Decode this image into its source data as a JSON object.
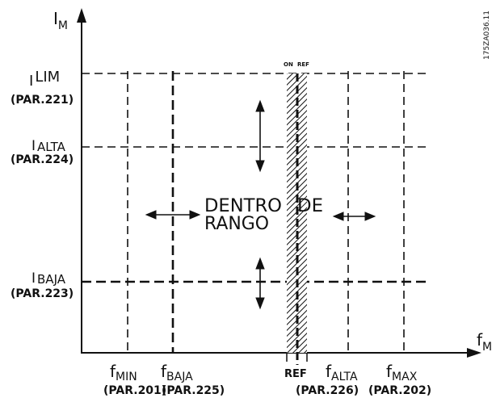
{
  "axes": {
    "y_label_main": "I",
    "y_label_sub": "M",
    "x_label_main": "f",
    "x_label_sub": "M"
  },
  "figure_code": "175ZA036.11",
  "current_limits": {
    "lim": {
      "main": "I",
      "sub": "LIM",
      "par": "(PAR.221)"
    },
    "alta": {
      "main": "I",
      "sub": "ALTA",
      "par": "(PAR.224)"
    },
    "baja": {
      "main": "I",
      "sub": "BAJA",
      "par": "(PAR.223)"
    }
  },
  "frequency_limits": {
    "fmin": {
      "main": "f",
      "sub": "MIN",
      "par": "(PAR.201)"
    },
    "fbaja": {
      "main": "f",
      "sub": "BAJA",
      "par": "(PAR.225)"
    },
    "ref": {
      "label": "REF"
    },
    "falta": {
      "main": "f",
      "sub": "ALTA",
      "par": "(PAR.226)"
    },
    "fmax": {
      "main": "f",
      "sub": "MAX",
      "par": "(PAR.202)"
    }
  },
  "ref_band": {
    "on_label": "ON",
    "ref_label": "REF"
  },
  "region": {
    "line1": "DENTRO",
    "line2": "RANGO",
    "connector": "DE"
  },
  "colors": {
    "ink": "#111111",
    "background": "#ffffff"
  }
}
